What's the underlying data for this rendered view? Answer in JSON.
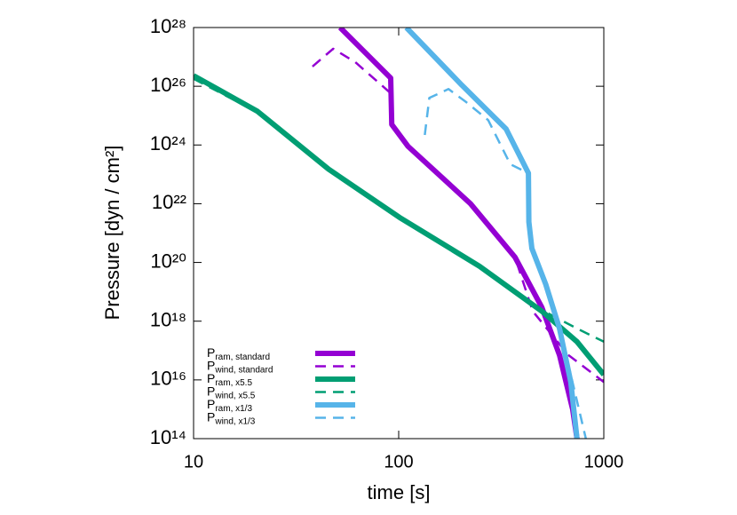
{
  "chart_data": {
    "type": "line",
    "xlabel": "time [s]",
    "ylabel": "Pressure [dyn / cm²]",
    "xscale": "log",
    "yscale": "log",
    "xlim": [
      10,
      1000
    ],
    "xticks": [
      10,
      100,
      1000
    ],
    "ylim": [
      100000000000000.0,
      1e+28
    ],
    "yticks": [
      {
        "value": 100000000000000.0,
        "label": "10¹⁴"
      },
      {
        "value": 1e+16,
        "label": "10¹⁶"
      },
      {
        "value": 1e+18,
        "label": "10¹⁸"
      },
      {
        "value": 1e+20,
        "label": "10²⁰"
      },
      {
        "value": 1e+22,
        "label": "10²²"
      },
      {
        "value": 1e+24,
        "label": "10²⁴"
      },
      {
        "value": 1e+26,
        "label": "10²⁶"
      },
      {
        "value": 1e+28,
        "label": "10²⁸"
      }
    ],
    "legend": "bottom-left",
    "series": [
      {
        "name": "Pram, standard",
        "color": "#9400d3",
        "dashed": false,
        "x": [
          51.8,
          91.4,
          92.5,
          111,
          224,
          369,
          498,
          608,
          705,
          740
        ],
        "values": [
          1e+28,
          1.9e+26,
          5e+24,
          9e+23,
          1e+22,
          1.5e+20,
          3e+18,
          7e+16,
          1000000000000000.0,
          100000000000000.0
        ]
      },
      {
        "name": "Pwind, standard",
        "color": "#9400d3",
        "dashed": false,
        "dash": true,
        "x": [
          38,
          47.9,
          61.4,
          91.4,
          92.5,
          111,
          224,
          369,
          450,
          672,
          1000
        ],
        "values": [
          4.7e+26,
          1.9e+27,
          6.6e+26,
          5.8e+25,
          5e+24,
          9e+23,
          1e+22,
          1.5e+20,
          2.2e+18,
          7e+16,
          8500000000000000.0
        ]
      },
      {
        "name": "Pram, x5.5",
        "color": "#009e73",
        "dashed": false,
        "x": [
          10,
          20.5,
          45.5,
          101,
          248,
          498,
          740,
          1000
        ],
        "values": [
          2.3e+26,
          1.4e+25,
          1.5e+23,
          3.4e+21,
          7.4e+19,
          2.2e+18,
          2e+17,
          1.5e+16
        ]
      },
      {
        "name": "Pwind, x5.5",
        "color": "#009e73",
        "dash": true,
        "x": [
          10,
          20.5,
          45.5,
          101,
          248,
          498,
          740,
          1000
        ],
        "values": [
          1.8e+26,
          1.3e+25,
          1.6e+23,
          3.1e+21,
          6.8e+19,
          2.4e+18,
          5.6e+17,
          2e+17
        ]
      },
      {
        "name": "Pram, x1/3",
        "color": "#56b4e9",
        "dashed": false,
        "x": [
          109,
          203,
          334,
          429,
          431,
          446,
          521,
          608,
          690,
          740
        ],
        "values": [
          1e+28,
          1.1e+26,
          3.5e+24,
          1.1e+23,
          2.4e+21,
          3e+20,
          1.8e+19,
          5.6e+17,
          8500000000000000.0,
          100000000000000.0
        ]
      },
      {
        "name": "Pwind, x1/3",
        "color": "#56b4e9",
        "dash": true,
        "x": [
          134,
          141,
          175,
          213,
          273,
          350,
          429,
          431,
          446,
          521,
          608,
          690,
          818
        ],
        "values": [
          2.2e+24,
          4e+25,
          8e+25,
          2.9e+25,
          7e+24,
          2.2e+23,
          1.1e+23,
          2.4e+21,
          3e+20,
          1.8e+19,
          5.6e+17,
          1.5e+16,
          100000000000000.0
        ]
      }
    ]
  }
}
